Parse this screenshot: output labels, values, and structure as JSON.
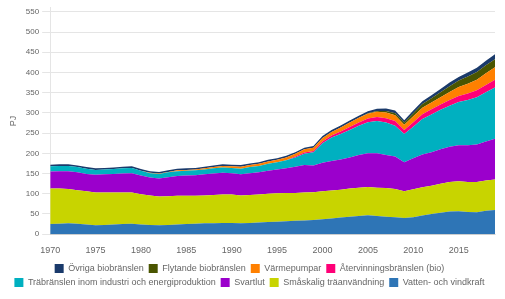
{
  "chart_data": {
    "type": "area",
    "stacked": true,
    "ylabel": "PJ",
    "grid": "y",
    "legend": "bottom",
    "xlim": [
      1970,
      2019
    ],
    "xticks": [
      1970,
      1975,
      1980,
      1985,
      1990,
      1995,
      2000,
      2005,
      2010,
      2015
    ],
    "ylim": [
      0,
      560
    ],
    "yticks": [
      0,
      50,
      100,
      150,
      200,
      250,
      300,
      350,
      400,
      450,
      500,
      550
    ],
    "x": [
      1970,
      1971,
      1972,
      1973,
      1974,
      1975,
      1976,
      1977,
      1978,
      1979,
      1980,
      1981,
      1982,
      1983,
      1984,
      1985,
      1986,
      1987,
      1988,
      1989,
      1990,
      1991,
      1992,
      1993,
      1994,
      1995,
      1996,
      1997,
      1998,
      1999,
      2000,
      2001,
      2002,
      2003,
      2004,
      2005,
      2006,
      2007,
      2008,
      2009,
      2010,
      2011,
      2012,
      2013,
      2014,
      2015,
      2016,
      2017,
      2018,
      2019
    ],
    "series": [
      {
        "name": "Vatten- och vindkraft",
        "color": "#2e75b6",
        "values": [
          25,
          26,
          27,
          26,
          24,
          22,
          23,
          24,
          25,
          26,
          24,
          23,
          22,
          23,
          24,
          25,
          26,
          27,
          27,
          28,
          28,
          27,
          28,
          29,
          30,
          31,
          32,
          33,
          34,
          35,
          37,
          39,
          41,
          43,
          45,
          47,
          45,
          43,
          42,
          40,
          42,
          46,
          50,
          53,
          56,
          57,
          55,
          54,
          58,
          60
        ]
      },
      {
        "name": "Småskalig träanvändning",
        "color": "#c8d400",
        "values": [
          88,
          87,
          85,
          83,
          82,
          81,
          80,
          79,
          78,
          77,
          75,
          73,
          71,
          71,
          71,
          70,
          69,
          69,
          70,
          70,
          70,
          69,
          69,
          69,
          70,
          70,
          70,
          69,
          69,
          69,
          69,
          69,
          69,
          70,
          70,
          70,
          70,
          71,
          70,
          66,
          69,
          70,
          70,
          72,
          73,
          74,
          74,
          75,
          75,
          75
        ]
      },
      {
        "name": "Svartlut",
        "color": "#9b00cc",
        "values": [
          42,
          43,
          44,
          44,
          43,
          44,
          45,
          46,
          47,
          48,
          46,
          44,
          45,
          47,
          49,
          50,
          51,
          52,
          53,
          54,
          53,
          52,
          54,
          55,
          57,
          59,
          61,
          65,
          68,
          66,
          71,
          73,
          75,
          77,
          81,
          83,
          85,
          82,
          80,
          72,
          77,
          81,
          83,
          85,
          87,
          89,
          91,
          93,
          96,
          101
        ]
      },
      {
        "name": "Träbränslen inom industri och energiproduktion",
        "color": "#00b0c0",
        "values": [
          13,
          13,
          13,
          13,
          13,
          12,
          12,
          12,
          13,
          13,
          12,
          11,
          11,
          12,
          12,
          12,
          12,
          12,
          13,
          13,
          13,
          14,
          15,
          16,
          17,
          18,
          20,
          23,
          28,
          33,
          48,
          58,
          63,
          68,
          72,
          77,
          80,
          80,
          76,
          70,
          78,
          88,
          93,
          98,
          102,
          107,
          112,
          117,
          122,
          127
        ]
      },
      {
        "name": "Återvinningsbränslen (bio)",
        "color": "#ff0077",
        "values": [
          0,
          0,
          0,
          0,
          0,
          0,
          0,
          0,
          0,
          0,
          0,
          0,
          0,
          0,
          0,
          0,
          0,
          0,
          0,
          0,
          0,
          0,
          0,
          0,
          0,
          0,
          0,
          2,
          3,
          3,
          4,
          5,
          6,
          7,
          8,
          9,
          10,
          11,
          12,
          10,
          11,
          12,
          13,
          13,
          14,
          15,
          16,
          17,
          18,
          19
        ]
      },
      {
        "name": "Värmepumpar",
        "color": "#ff8000",
        "values": [
          0,
          0,
          0,
          0,
          0,
          0,
          0,
          0,
          0,
          0,
          0,
          1,
          1,
          1,
          2,
          2,
          2,
          3,
          3,
          4,
          4,
          5,
          5,
          5,
          6,
          6,
          7,
          7,
          8,
          8,
          9,
          9,
          10,
          11,
          12,
          12,
          13,
          14,
          14,
          13,
          15,
          16,
          17,
          18,
          20,
          22,
          24,
          26,
          29,
          31
        ]
      },
      {
        "name": "Flytande biobränslen",
        "color": "#4a5500",
        "values": [
          0,
          0,
          0,
          0,
          0,
          0,
          0,
          0,
          0,
          0,
          0,
          0,
          0,
          0,
          0,
          0,
          0,
          0,
          0,
          0,
          0,
          0,
          0,
          0,
          0,
          0,
          0,
          0,
          0,
          0,
          0,
          0,
          0,
          0,
          0,
          1,
          2,
          4,
          5,
          5,
          7,
          9,
          10,
          12,
          14,
          16,
          18,
          19,
          20,
          20
        ]
      },
      {
        "name": "Övriga biobränslen",
        "color": "#1a3a6b",
        "values": [
          4,
          4,
          4,
          4,
          4,
          4,
          4,
          4,
          4,
          4,
          4,
          4,
          4,
          4,
          4,
          4,
          4,
          4,
          4,
          4,
          4,
          4,
          4,
          4,
          4,
          4,
          4,
          4,
          4,
          4,
          5,
          5,
          5,
          5,
          5,
          5,
          5,
          6,
          7,
          6,
          7,
          7,
          8,
          8,
          9,
          9,
          10,
          11,
          11,
          12
        ]
      }
    ]
  }
}
